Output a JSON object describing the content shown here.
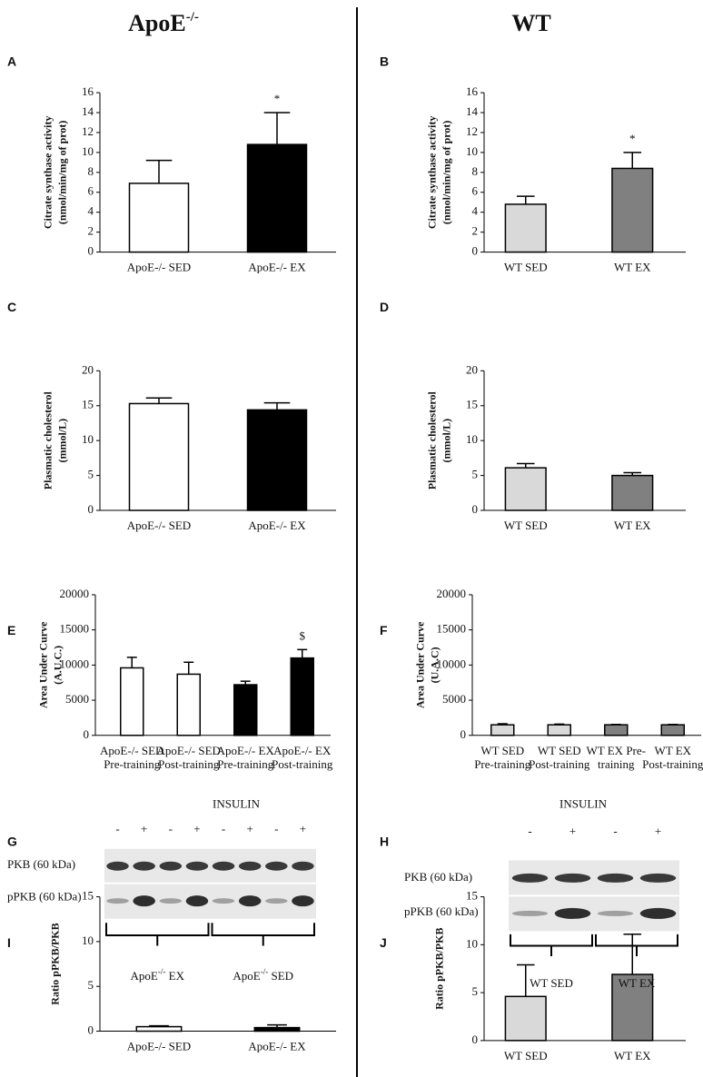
{
  "headers": [
    [
      "ApoE",
      "-/-"
    ],
    [
      "WT"
    ]
  ],
  "chart_data": [
    {
      "type": "bar",
      "panel": "A",
      "ylabel": [
        "Citrate synthase activity",
        "(nmol/min/mg of prot)"
      ],
      "categories": [
        [
          "ApoE-/- SED"
        ],
        [
          "ApoE-/- EX"
        ]
      ],
      "values": [
        6.9,
        10.8
      ],
      "errors": [
        2.3,
        3.2
      ],
      "colors": [
        "#ffffff",
        "#000000"
      ],
      "annotations": [
        null,
        "*"
      ],
      "ylim": [
        0,
        16
      ],
      "yticks": [
        0,
        2,
        4,
        6,
        8,
        10,
        12,
        14,
        16
      ]
    },
    {
      "type": "bar",
      "panel": "B",
      "ylabel": [
        "Citrate synthase activity",
        "(nmol/min/mg of prot)"
      ],
      "categories": [
        [
          "WT SED"
        ],
        [
          "WT EX"
        ]
      ],
      "values": [
        4.8,
        8.4
      ],
      "errors": [
        0.8,
        1.6
      ],
      "colors": [
        "#d9d9d9",
        "#808080"
      ],
      "annotations": [
        null,
        "*"
      ],
      "ylim": [
        0,
        16
      ],
      "yticks": [
        0,
        2,
        4,
        6,
        8,
        10,
        12,
        14,
        16
      ]
    },
    {
      "type": "bar",
      "panel": "C",
      "ylabel": [
        "Plasmatic cholesterol",
        "(mmol/L)"
      ],
      "categories": [
        [
          "ApoE-/- SED"
        ],
        [
          "ApoE-/- EX"
        ]
      ],
      "values": [
        15.3,
        14.4
      ],
      "errors": [
        0.8,
        1.0
      ],
      "colors": [
        "#ffffff",
        "#000000"
      ],
      "ylim": [
        0,
        20
      ],
      "yticks": [
        0,
        5,
        10,
        15,
        20
      ]
    },
    {
      "type": "bar",
      "panel": "D",
      "ylabel": [
        "Plasmatic cholesterol",
        "(mmol/L)"
      ],
      "categories": [
        [
          "WT SED"
        ],
        [
          "WT EX"
        ]
      ],
      "values": [
        6.1,
        5.0
      ],
      "errors": [
        0.6,
        0.4
      ],
      "colors": [
        "#d9d9d9",
        "#808080"
      ],
      "ylim": [
        0,
        20
      ],
      "yticks": [
        0,
        5,
        10,
        15,
        20
      ]
    },
    {
      "type": "bar",
      "panel": "E",
      "ylabel": [
        "Area Under Curve",
        "(A.U.C.)"
      ],
      "categories": [
        [
          "ApoE-/- SED",
          "Pre-training"
        ],
        [
          "ApoE-/- SED",
          "Post-training"
        ],
        [
          "ApoE-/- EX",
          "Pre-training"
        ],
        [
          "ApoE-/- EX",
          "Post-training"
        ]
      ],
      "values": [
        9600,
        8700,
        7200,
        11000
      ],
      "errors": [
        1500,
        1700,
        500,
        1200
      ],
      "colors": [
        "#ffffff",
        "#ffffff",
        "#000000",
        "#000000"
      ],
      "annotations": [
        null,
        null,
        null,
        "$"
      ],
      "ylim": [
        0,
        20000
      ],
      "yticks": [
        0,
        5000,
        10000,
        15000,
        20000
      ]
    },
    {
      "type": "bar",
      "panel": "F",
      "ylabel": [
        "Area Under Curve",
        "(U.A.C)"
      ],
      "categories": [
        [
          "WT SED",
          "Pre-training"
        ],
        [
          "WT SED",
          "Post-training"
        ],
        [
          "WT EX Pre-",
          "training"
        ],
        [
          "WT EX",
          "Post-training"
        ]
      ],
      "values": [
        1500,
        1500,
        1500,
        1500
      ],
      "errors": [
        150,
        100,
        50,
        50
      ],
      "colors": [
        "#d9d9d9",
        "#d9d9d9",
        "#808080",
        "#808080"
      ],
      "ylim": [
        0,
        20000
      ],
      "yticks": [
        0,
        5000,
        10000,
        15000,
        20000
      ]
    },
    {
      "type": "bar",
      "panel": "I",
      "ylabel": [
        "Ratio pPKB/PKB"
      ],
      "categories": [
        [
          "ApoE-/- SED"
        ],
        [
          "ApoE-/- EX"
        ]
      ],
      "values": [
        0.5,
        0.4
      ],
      "errors": [
        0.1,
        0.3
      ],
      "colors": [
        "#ffffff",
        "#000000"
      ],
      "ylim": [
        0,
        15
      ],
      "yticks": [
        0,
        5,
        10,
        15
      ]
    },
    {
      "type": "bar",
      "panel": "J",
      "ylabel": [
        "Ratio pPKB/PKB"
      ],
      "categories": [
        [
          "WT SED"
        ],
        [
          "WT EX"
        ]
      ],
      "values": [
        4.6,
        6.9
      ],
      "errors": [
        3.3,
        4.2
      ],
      "colors": [
        "#d9d9d9",
        "#808080"
      ],
      "ylim": [
        0,
        15
      ],
      "yticks": [
        0,
        5,
        10,
        15
      ]
    }
  ],
  "blots": [
    {
      "panel": "G",
      "title": "INSULIN",
      "signs": [
        "-",
        "+",
        "-",
        "+",
        "-",
        "+",
        "-",
        "+"
      ],
      "rows": [
        "PKB (60 kDa)",
        "pPKB (60 kDa)"
      ],
      "groups": [
        [
          "ApoE",
          "-/-",
          " EX"
        ],
        [
          "ApoE",
          "-/-",
          " SED"
        ]
      ]
    },
    {
      "panel": "H",
      "title": "INSULIN",
      "signs": [
        "-",
        "+",
        "-",
        "+"
      ],
      "rows": [
        "PKB (60 kDa)",
        "pPKB (60 kDa)"
      ],
      "groups": [
        [
          "WT SED"
        ],
        [
          "WT EX"
        ]
      ]
    }
  ]
}
